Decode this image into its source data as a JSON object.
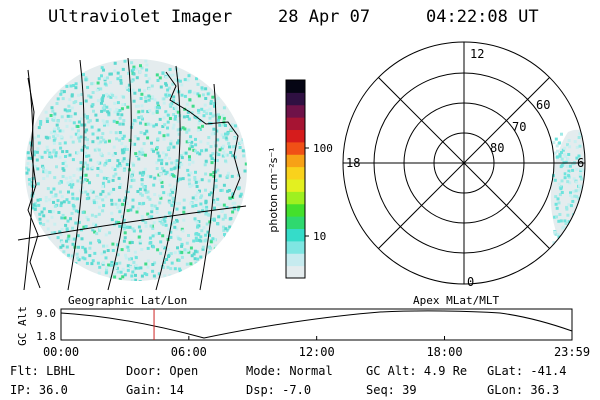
{
  "header": {
    "instrument": "Ultraviolet Imager",
    "date": "28 Apr 07",
    "time": "04:22:08 UT"
  },
  "colorbar": {
    "unit_label": "photon cm⁻²s⁻¹",
    "ticks": [
      {
        "label": "100",
        "value": 100
      },
      {
        "label": "10",
        "value": 10
      }
    ],
    "colors": [
      "#e4ecee",
      "#c6ebef",
      "#7fe6e2",
      "#35dcc9",
      "#2fd96f",
      "#44e02c",
      "#9ef020",
      "#e3f020",
      "#f9d21c",
      "#f7a116",
      "#f05016",
      "#d61c1c",
      "#a61433",
      "#6e1248",
      "#2f1042",
      "#050514"
    ]
  },
  "left_panel": {
    "label": "Geographic Lat/Lon",
    "colors": {
      "background": "#e4ecee",
      "emission": "#6ee3dd",
      "grid": "#000000"
    }
  },
  "right_panel": {
    "label": "Apex MLat/MLT",
    "mlt_labels": [
      {
        "text": "12",
        "pos": "top"
      },
      {
        "text": "18",
        "pos": "left"
      },
      {
        "text": "6",
        "pos": "right"
      },
      {
        "text": "0",
        "pos": "bottom"
      }
    ],
    "mlat_labels": [
      "60",
      "70",
      "80"
    ]
  },
  "timeline": {
    "y_axis_label": "GC Alt",
    "y_ticks": [
      "9.0",
      "1.8"
    ],
    "x_ticks": [
      "00:00",
      "06:00",
      "12:00",
      "18:00",
      "23:59"
    ],
    "current_time": "04:22",
    "marker_color": "#cc2222"
  },
  "info": {
    "filter": {
      "label": "Flt:",
      "value": "LBHL"
    },
    "ip": {
      "label": "IP:",
      "value": "36.0"
    },
    "door": {
      "label": "Door:",
      "value": "Open"
    },
    "gain": {
      "label": "Gain:",
      "value": "14"
    },
    "mode": {
      "label": "Mode:",
      "value": "Normal"
    },
    "dsp": {
      "label": "Dsp:",
      "value": "-7.0"
    },
    "gc_alt": {
      "label": "GC Alt:",
      "value": "4.9 Re"
    },
    "seq": {
      "label": "Seq:",
      "value": "39"
    },
    "glat": {
      "label": "GLat:",
      "value": "-41.4"
    },
    "glon": {
      "label": "GLon:",
      "value": "36.3"
    }
  }
}
